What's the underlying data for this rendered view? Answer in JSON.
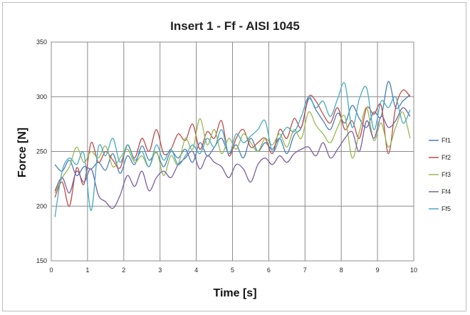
{
  "chart_data": {
    "type": "line",
    "title": "Insert 1 - Ff - AISI 1045",
    "xlabel": "Time [s]",
    "ylabel": "Force [N]",
    "xlim": [
      0,
      10
    ],
    "ylim": [
      150,
      350
    ],
    "xticks": [
      "0",
      "1",
      "2",
      "3",
      "4",
      "5",
      "6",
      "7",
      "8",
      "9",
      "10"
    ],
    "yticks": [
      "150",
      "200",
      "250",
      "300",
      "350"
    ],
    "grid": true,
    "legend_position": "right",
    "x": [
      0.1,
      0.3,
      0.5,
      0.7,
      0.9,
      1.1,
      1.3,
      1.5,
      1.7,
      1.9,
      2.1,
      2.3,
      2.5,
      2.7,
      2.9,
      3.1,
      3.3,
      3.5,
      3.7,
      3.9,
      4.1,
      4.3,
      4.5,
      4.7,
      4.9,
      5.1,
      5.3,
      5.5,
      5.7,
      5.9,
      6.1,
      6.3,
      6.5,
      6.7,
      6.9,
      7.1,
      7.3,
      7.5,
      7.7,
      7.9,
      8.1,
      8.3,
      8.5,
      8.7,
      8.9,
      9.1,
      9.3,
      9.5,
      9.7,
      9.9
    ],
    "series": [
      {
        "name": "Ff1",
        "color": "#4a7ebb",
        "values": [
          238,
          232,
          242,
          228,
          236,
          234,
          240,
          233,
          248,
          230,
          246,
          238,
          255,
          242,
          249,
          236,
          250,
          244,
          252,
          240,
          258,
          246,
          254,
          262,
          248,
          256,
          244,
          262,
          250,
          258,
          252,
          262,
          248,
          265,
          272,
          298,
          288,
          278,
          270,
          285,
          276,
          292,
          280,
          272,
          286,
          282,
          314,
          290,
          296,
          302
        ]
      },
      {
        "name": "Ff2",
        "color": "#be4b48",
        "values": [
          208,
          222,
          200,
          235,
          220,
          258,
          240,
          250,
          242,
          235,
          256,
          244,
          262,
          250,
          270,
          248,
          252,
          266,
          260,
          275,
          252,
          268,
          262,
          278,
          246,
          262,
          270,
          254,
          258,
          262,
          248,
          270,
          262,
          280,
          272,
          300,
          296,
          284,
          276,
          290,
          270,
          278,
          262,
          290,
          284,
          292,
          248,
          290,
          306,
          300
        ]
      },
      {
        "name": "Ff3",
        "color": "#98b954",
        "values": [
          212,
          226,
          236,
          254,
          240,
          250,
          244,
          255,
          236,
          244,
          252,
          240,
          246,
          236,
          250,
          228,
          246,
          238,
          262,
          252,
          280,
          256,
          270,
          248,
          262,
          252,
          266,
          258,
          250,
          262,
          256,
          266,
          254,
          270,
          262,
          286,
          274,
          266,
          258,
          272,
          282,
          244,
          268,
          290,
          260,
          276,
          254,
          272,
          286,
          262
        ]
      },
      {
        "name": "Ff4",
        "color": "#7d60a0",
        "values": [
          214,
          226,
          212,
          232,
          222,
          234,
          210,
          204,
          198,
          210,
          228,
          218,
          232,
          214,
          226,
          232,
          226,
          238,
          244,
          250,
          234,
          246,
          240,
          236,
          226,
          238,
          234,
          222,
          238,
          244,
          238,
          246,
          240,
          248,
          252,
          254,
          246,
          258,
          244,
          252,
          262,
          268,
          250,
          278,
          262,
          282,
          272,
          278,
          290,
          282
        ]
      },
      {
        "name": "Ff5",
        "color": "#46aac5",
        "values": [
          190,
          232,
          244,
          238,
          248,
          196,
          254,
          246,
          262,
          240,
          256,
          242,
          250,
          236,
          256,
          242,
          252,
          238,
          246,
          256,
          248,
          262,
          254,
          270,
          248,
          266,
          258,
          264,
          270,
          278,
          250,
          262,
          272,
          268,
          282,
          300,
          290,
          296,
          282,
          298,
          312,
          272,
          298,
          308,
          270,
          296,
          290,
          300,
          276,
          288
        ]
      }
    ]
  }
}
